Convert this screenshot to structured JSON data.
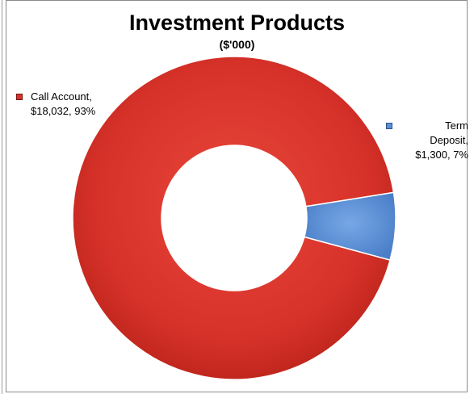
{
  "chart_data": {
    "type": "pie",
    "variant": "donut",
    "title": "Investment Products",
    "subtitle": "($'000)",
    "categories": [
      "Call Account",
      "Term Deposit"
    ],
    "values": [
      18032,
      1300
    ],
    "percent_labels": [
      "93%",
      "7%"
    ],
    "value_labels": [
      "$18,032",
      "$1,300"
    ],
    "colors": [
      "#d8322a",
      "#5b8fd6"
    ],
    "legend": "none",
    "grid": false
  },
  "labels": {
    "call": {
      "line1": "Call Account,",
      "line2": "$18,032, 93%"
    },
    "term": {
      "line1": "Term",
      "line2": "Deposit,",
      "line3": "$1,300, 7%"
    }
  }
}
